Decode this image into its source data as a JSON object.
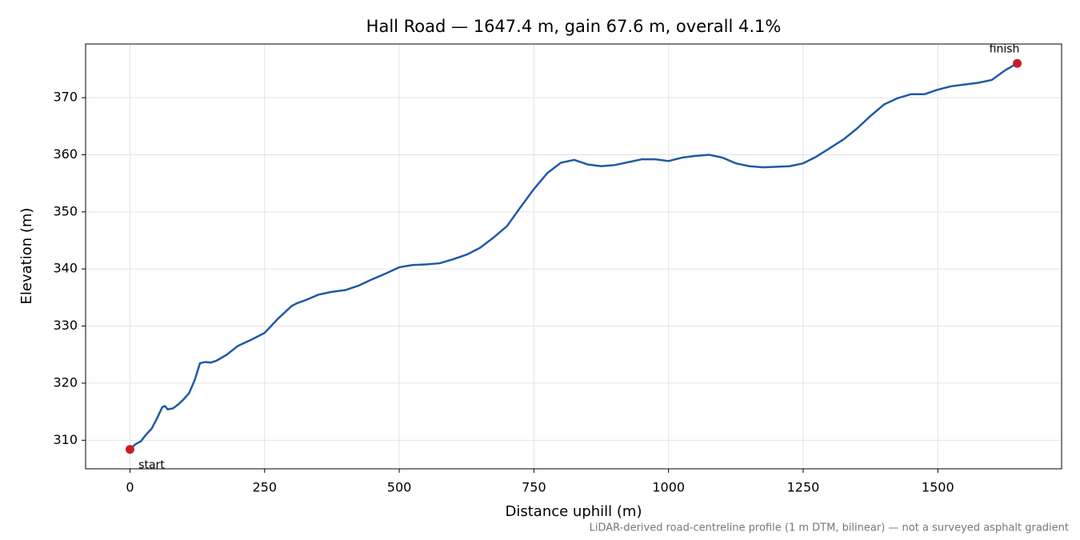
{
  "chart_data": {
    "type": "line",
    "title": "Hall Road — 1647.4 m, gain 67.6 m, overall 4.1%",
    "x_label": "Distance uphill (m)",
    "y_label": "Elevation (m)",
    "footnote": "LiDAR-derived road-centreline profile (1 m DTM, bilinear) — not a surveyed asphalt gradient",
    "annotations": {
      "start": "start",
      "finish": "finish"
    },
    "endpoint_color": "#c41e2a",
    "grid": true,
    "xlim": [
      -82.4,
      1729.8
    ],
    "ylim": [
      305.0,
      379.4
    ],
    "xticks": [
      0,
      250,
      500,
      750,
      1000,
      1250,
      1500
    ],
    "yticks": [
      310,
      320,
      330,
      340,
      350,
      360,
      370
    ],
    "x": [
      0,
      10,
      20,
      30,
      40,
      50,
      60,
      65,
      70,
      80,
      90,
      100,
      110,
      120,
      130,
      140,
      150,
      160,
      180,
      200,
      225,
      250,
      275,
      300,
      310,
      325,
      350,
      375,
      400,
      425,
      450,
      475,
      500,
      525,
      550,
      575,
      600,
      625,
      650,
      675,
      700,
      725,
      750,
      775,
      800,
      825,
      850,
      875,
      900,
      925,
      950,
      975,
      1000,
      1025,
      1050,
      1075,
      1100,
      1125,
      1150,
      1175,
      1200,
      1225,
      1250,
      1275,
      1300,
      1325,
      1350,
      1375,
      1400,
      1425,
      1450,
      1475,
      1500,
      1525,
      1550,
      1575,
      1600,
      1625,
      1647.4
    ],
    "series": [
      {
        "name": "Elevation",
        "color": "#1f5aa6",
        "values": [
          308.4,
          309.3,
          309.8,
          311.0,
          312.0,
          313.8,
          315.8,
          316.0,
          315.4,
          315.6,
          316.3,
          317.2,
          318.3,
          320.5,
          323.5,
          323.7,
          323.6,
          323.9,
          325.0,
          326.5,
          327.6,
          328.8,
          331.3,
          333.5,
          334.0,
          334.5,
          335.5,
          336.0,
          336.3,
          337.1,
          338.2,
          339.2,
          340.3,
          340.7,
          340.8,
          341.0,
          341.7,
          342.5,
          343.7,
          345.5,
          347.5,
          350.8,
          354.0,
          356.8,
          358.6,
          359.1,
          358.3,
          358.0,
          358.2,
          358.7,
          359.2,
          359.2,
          358.9,
          359.5,
          359.8,
          360.0,
          359.5,
          358.5,
          358.0,
          357.8,
          357.9,
          358.0,
          358.5,
          359.7,
          361.2,
          362.7,
          364.6,
          366.8,
          368.8,
          369.9,
          370.6,
          370.6,
          371.4,
          372.0,
          372.3,
          372.6,
          373.1,
          374.8,
          376.0
        ]
      }
    ]
  }
}
